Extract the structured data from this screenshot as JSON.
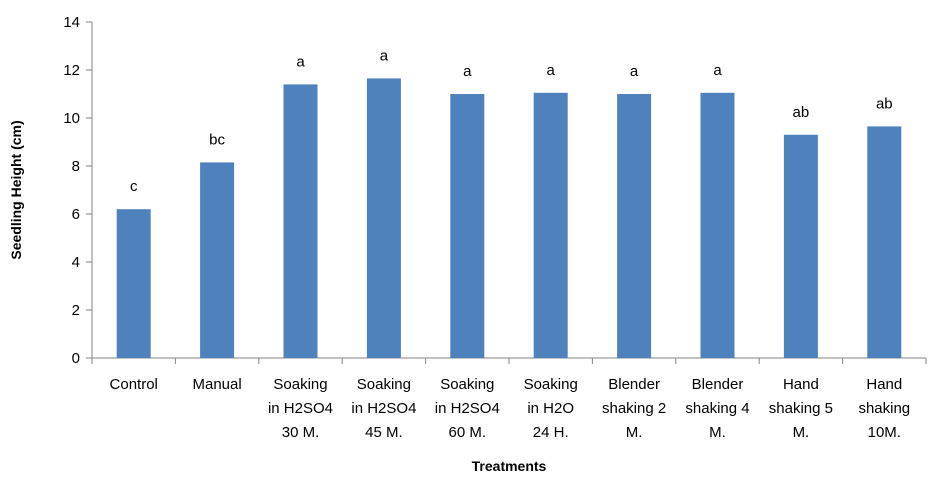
{
  "chart_data": {
    "type": "bar",
    "title": "",
    "xlabel": "Treatments",
    "ylabel": "Seedling Height (cm)",
    "ylim": [
      0,
      14
    ],
    "yticks": [
      "0",
      "2",
      "4",
      "6",
      "8",
      "10",
      "12",
      "14"
    ],
    "grid": false,
    "legend": "none",
    "bar_color": "#4f81bd",
    "categories": [
      [
        "Control"
      ],
      [
        "Manual"
      ],
      [
        "Soaking",
        "in H2SO4",
        "30 M."
      ],
      [
        "Soaking",
        "in H2SO4",
        "45 M."
      ],
      [
        "Soaking",
        "in H2SO4",
        "60 M."
      ],
      [
        "Soaking",
        "in H2O",
        "24 H."
      ],
      [
        "Blender",
        "shaking 2",
        "M."
      ],
      [
        "Blender",
        "shaking 4",
        "M."
      ],
      [
        "Hand",
        "shaking 5",
        "M."
      ],
      [
        "Hand",
        "shaking",
        "10M."
      ]
    ],
    "values": [
      6.2,
      8.15,
      11.4,
      11.65,
      11.0,
      11.05,
      11.0,
      11.05,
      9.3,
      9.65
    ],
    "data_labels": [
      "c",
      "bc",
      "a",
      "a",
      "a",
      "a",
      "a",
      "a",
      "ab",
      "ab"
    ]
  }
}
